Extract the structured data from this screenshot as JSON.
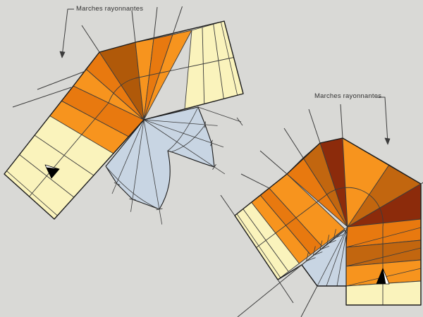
{
  "page": {
    "type": "stair-construction-diagram"
  },
  "annotations": {
    "left_label": "Marches rayonnantes",
    "right_label": "Marches rayonnantes"
  },
  "colors": {
    "background": "#d9d9d6",
    "cream": "#faf3bc",
    "orange_bright": "#f7941e",
    "orange_mid": "#e8790f",
    "orange_dark": "#c2660f",
    "brown_mid": "#b05909",
    "brown_dark": "#8c2b0b",
    "blue_gray": "#c8d5e3",
    "outline": "#1c1c1c",
    "thin_line": "#3c3c3c",
    "text": "#333333",
    "arrow_black": "#000000",
    "arrow_white": "#ffffff"
  }
}
